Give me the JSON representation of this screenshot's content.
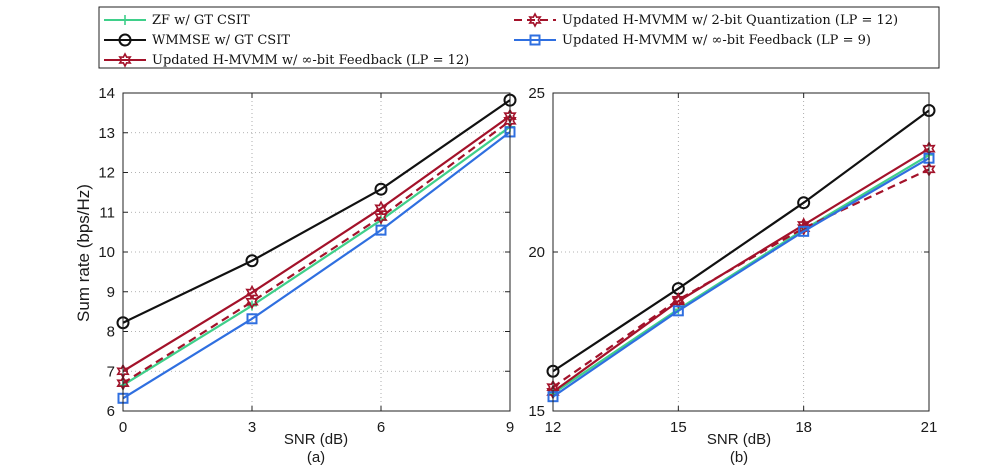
{
  "series_styles": [
    {
      "key": "zf",
      "color": "#3fcf8a",
      "dash": "",
      "marker": "plus"
    },
    {
      "key": "wmmse",
      "color": "#111111",
      "dash": "",
      "marker": "circle"
    },
    {
      "key": "hmvmm12",
      "color": "#a3122a",
      "dash": "",
      "marker": "hexagram"
    },
    {
      "key": "quant2",
      "color": "#a3122a",
      "dash": "8 5",
      "marker": "hexagram"
    },
    {
      "key": "hmvmm9",
      "color": "#2f6fe0",
      "dash": "",
      "marker": "square"
    }
  ],
  "legend": {
    "entries": [
      {
        "series": "zf",
        "label": "ZF w/ GT CSIT"
      },
      {
        "series": "wmmse",
        "label": "WMMSE w/ GT CSIT"
      },
      {
        "series": "hmvmm12",
        "label": "Updated H-MVMM w/ ∞-bit Feedback (LP = 12)"
      },
      {
        "series": "quant2",
        "label": "Updated H-MVMM w/ 2-bit Quantization (LP = 12)"
      },
      {
        "series": "hmvmm9",
        "label": "Updated H-MVMM w/ ∞-bit Feedback (LP = 9)"
      }
    ]
  },
  "chart_data": [
    {
      "type": "line",
      "panel_label": "(a)",
      "xlabel": "SNR (dB)",
      "ylabel": "Sum rate (bps/Hz)",
      "x": [
        0,
        3,
        6,
        9
      ],
      "xticks": [
        "0",
        "3",
        "6",
        "9"
      ],
      "xlim": [
        0,
        9
      ],
      "ylim": [
        6,
        14
      ],
      "yticks": [
        "6",
        "7",
        "8",
        "9",
        "10",
        "11",
        "12",
        "13",
        "14"
      ],
      "grid": true,
      "series": [
        {
          "name": "ZF w/ GT CSIT",
          "key": "zf",
          "values": [
            6.65,
            8.65,
            10.8,
            13.15
          ]
        },
        {
          "name": "WMMSE w/ GT CSIT",
          "key": "wmmse",
          "values": [
            8.22,
            9.78,
            11.58,
            13.82
          ]
        },
        {
          "name": "Updated H-MVMM w/ ∞-bit Feedback (LP = 12)",
          "key": "hmvmm12",
          "values": [
            7.0,
            8.98,
            11.1,
            13.42
          ]
        },
        {
          "name": "Updated H-MVMM w/ 2-bit Quantization (LP = 12)",
          "key": "quant2",
          "values": [
            6.7,
            8.75,
            10.88,
            13.3
          ]
        },
        {
          "name": "Updated H-MVMM w/ ∞-bit Feedback (LP = 9)",
          "key": "hmvmm9",
          "values": [
            6.32,
            8.32,
            10.55,
            13.02
          ]
        }
      ]
    },
    {
      "type": "line",
      "panel_label": "(b)",
      "xlabel": "SNR (dB)",
      "ylabel": "",
      "x": [
        12,
        15,
        18,
        21
      ],
      "xticks": [
        "12",
        "15",
        "18",
        "21"
      ],
      "xlim": [
        12,
        21
      ],
      "ylim": [
        15,
        25
      ],
      "yticks": [
        "15",
        "20",
        "25"
      ],
      "grid": true,
      "series": [
        {
          "name": "ZF w/ GT CSIT",
          "key": "zf",
          "values": [
            15.55,
            18.2,
            20.7,
            23.05
          ]
        },
        {
          "name": "WMMSE w/ GT CSIT",
          "key": "wmmse",
          "values": [
            16.25,
            18.85,
            21.55,
            24.45
          ]
        },
        {
          "name": "Updated H-MVMM w/ ∞-bit Feedback (LP = 12)",
          "key": "hmvmm12",
          "values": [
            15.6,
            18.45,
            20.85,
            23.25
          ]
        },
        {
          "name": "Updated H-MVMM w/ 2-bit Quantization (LP = 12)",
          "key": "quant2",
          "values": [
            15.75,
            18.5,
            20.75,
            22.6
          ]
        },
        {
          "name": "Updated H-MVMM w/ ∞-bit Feedback (LP = 9)",
          "key": "hmvmm9",
          "values": [
            15.45,
            18.15,
            20.65,
            22.95
          ]
        }
      ]
    }
  ]
}
